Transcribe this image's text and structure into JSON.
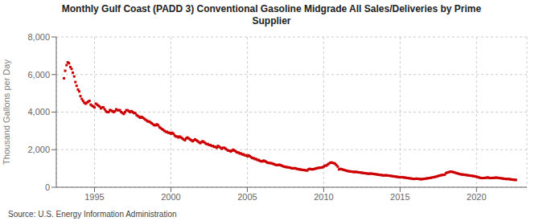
{
  "chart_data": {
    "type": "scatter",
    "title": "Monthly Gulf Coast (PADD 3) Conventional Gasoline Midgrade All Sales/Deliveries by Prime\nSupplier",
    "ylabel": "Thousand Gallons per Day",
    "source": "Source: U.S. Energy Information Administration",
    "color": "#cc0000",
    "marker": "square",
    "grid": true,
    "xlim": [
      1992.5,
      2023.3
    ],
    "xticks": [
      1995,
      2000,
      2005,
      2010,
      2015,
      2020
    ],
    "ylim": [
      0,
      8000
    ],
    "yticks": [
      0,
      {
        "value": 2000,
        "label": "2,000"
      },
      {
        "value": 4000,
        "label": "4,000"
      },
      {
        "value": 6000,
        "label": "6,000"
      },
      {
        "value": 8000,
        "label": "8,000"
      }
    ],
    "x": [
      1993.0,
      1993.08,
      1993.17,
      1993.25,
      1993.33,
      1993.42,
      1993.5,
      1993.58,
      1993.67,
      1993.75,
      1993.83,
      1993.92,
      1994.0,
      1994.08,
      1994.17,
      1994.25,
      1994.33,
      1994.42,
      1994.5,
      1994.58,
      1994.67,
      1994.75,
      1994.83,
      1994.92,
      1995.0,
      1995.08,
      1995.17,
      1995.25,
      1995.33,
      1995.42,
      1995.5,
      1995.58,
      1995.67,
      1995.75,
      1995.83,
      1995.92,
      1996.0,
      1996.08,
      1996.17,
      1996.25,
      1996.33,
      1996.42,
      1996.5,
      1996.58,
      1996.67,
      1996.75,
      1996.83,
      1996.92,
      1997.0,
      1997.08,
      1997.17,
      1997.25,
      1997.33,
      1997.42,
      1997.5,
      1997.58,
      1997.67,
      1997.75,
      1997.83,
      1997.92,
      1998.0,
      1998.08,
      1998.17,
      1998.25,
      1998.33,
      1998.42,
      1998.5,
      1998.58,
      1998.67,
      1998.75,
      1998.83,
      1998.92,
      1999.0,
      1999.08,
      1999.17,
      1999.25,
      1999.33,
      1999.42,
      1999.5,
      1999.58,
      1999.67,
      1999.75,
      1999.83,
      1999.92,
      2000.0,
      2000.08,
      2000.17,
      2000.25,
      2000.33,
      2000.42,
      2000.5,
      2000.58,
      2000.67,
      2000.75,
      2000.83,
      2000.92,
      2001.0,
      2001.08,
      2001.17,
      2001.25,
      2001.33,
      2001.42,
      2001.5,
      2001.58,
      2001.67,
      2001.75,
      2001.83,
      2001.92,
      2002.0,
      2002.08,
      2002.17,
      2002.25,
      2002.33,
      2002.42,
      2002.5,
      2002.58,
      2002.67,
      2002.75,
      2002.83,
      2002.92,
      2003.0,
      2003.08,
      2003.17,
      2003.25,
      2003.33,
      2003.42,
      2003.5,
      2003.58,
      2003.67,
      2003.75,
      2003.83,
      2003.92,
      2004.0,
      2004.08,
      2004.17,
      2004.25,
      2004.33,
      2004.42,
      2004.5,
      2004.58,
      2004.67,
      2004.75,
      2004.83,
      2004.92,
      2005.0,
      2005.08,
      2005.17,
      2005.25,
      2005.33,
      2005.42,
      2005.5,
      2005.58,
      2005.67,
      2005.75,
      2005.83,
      2005.92,
      2006.0,
      2006.08,
      2006.17,
      2006.25,
      2006.33,
      2006.42,
      2006.5,
      2006.58,
      2006.67,
      2006.75,
      2006.83,
      2006.92,
      2007.0,
      2007.08,
      2007.17,
      2007.25,
      2007.33,
      2007.42,
      2007.5,
      2007.58,
      2007.67,
      2007.75,
      2007.83,
      2007.92,
      2008.0,
      2008.08,
      2008.17,
      2008.25,
      2008.33,
      2008.42,
      2008.5,
      2008.58,
      2008.67,
      2008.75,
      2008.83,
      2008.92,
      2009.0,
      2009.08,
      2009.17,
      2009.25,
      2009.33,
      2009.42,
      2009.5,
      2009.58,
      2009.67,
      2009.75,
      2009.83,
      2009.92,
      2010.0,
      2010.08,
      2010.17,
      2010.25,
      2010.33,
      2010.42,
      2010.5,
      2010.58,
      2010.67,
      2010.75,
      2010.83,
      2010.92,
      2011.0,
      2011.08,
      2011.17,
      2011.25,
      2011.33,
      2011.42,
      2011.5,
      2011.58,
      2011.67,
      2011.75,
      2011.83,
      2011.92,
      2012.0,
      2012.08,
      2012.17,
      2012.25,
      2012.33,
      2012.42,
      2012.5,
      2012.58,
      2012.67,
      2012.75,
      2012.83,
      2012.92,
      2013.0,
      2013.08,
      2013.17,
      2013.25,
      2013.33,
      2013.42,
      2013.5,
      2013.58,
      2013.67,
      2013.75,
      2013.83,
      2013.92,
      2014.0,
      2014.08,
      2014.17,
      2014.25,
      2014.33,
      2014.42,
      2014.5,
      2014.58,
      2014.67,
      2014.75,
      2014.83,
      2014.92,
      2015.0,
      2015.08,
      2015.17,
      2015.25,
      2015.33,
      2015.42,
      2015.5,
      2015.58,
      2015.67,
      2015.75,
      2015.83,
      2015.92,
      2016.0,
      2016.08,
      2016.17,
      2016.25,
      2016.33,
      2016.42,
      2016.5,
      2016.58,
      2016.67,
      2016.75,
      2016.83,
      2016.92,
      2017.0,
      2017.08,
      2017.17,
      2017.25,
      2017.33,
      2017.42,
      2017.5,
      2017.58,
      2017.67,
      2017.75,
      2017.83,
      2017.92,
      2018.0,
      2018.08,
      2018.17,
      2018.25,
      2018.33,
      2018.42,
      2018.5,
      2018.58,
      2018.67,
      2018.75,
      2018.83,
      2018.92,
      2019.0,
      2019.08,
      2019.17,
      2019.25,
      2019.33,
      2019.42,
      2019.5,
      2019.58,
      2019.67,
      2019.75,
      2019.83,
      2019.92,
      2020.0,
      2020.08,
      2020.17,
      2020.25,
      2020.33,
      2020.42,
      2020.5,
      2020.58,
      2020.67,
      2020.75,
      2020.83,
      2020.92,
      2021.0,
      2021.08,
      2021.17,
      2021.25,
      2021.33,
      2021.42,
      2021.5,
      2021.58,
      2021.67,
      2021.75,
      2021.83,
      2021.92,
      2022.0,
      2022.08,
      2022.17,
      2022.25,
      2022.33,
      2022.42,
      2022.5,
      2022.58
    ],
    "values": [
      5800,
      6200,
      6500,
      6650,
      6600,
      6400,
      6300,
      6100,
      5900,
      5600,
      5400,
      5200,
      5100,
      4850,
      4700,
      4600,
      4500,
      4450,
      4500,
      4550,
      4600,
      4400,
      4350,
      4300,
      4250,
      4450,
      4400,
      4350,
      4300,
      4200,
      4250,
      4250,
      4150,
      4050,
      4000,
      4000,
      4100,
      4100,
      4050,
      4000,
      4050,
      4150,
      4100,
      4100,
      4100,
      4000,
      3950,
      3900,
      4000,
      4100,
      4100,
      4050,
      4000,
      4050,
      4000,
      3950,
      3950,
      3850,
      3800,
      3750,
      3700,
      3750,
      3700,
      3650,
      3600,
      3550,
      3500,
      3500,
      3450,
      3400,
      3350,
      3300,
      3300,
      3350,
      3300,
      3200,
      3150,
      3100,
      3050,
      3000,
      2950,
      2950,
      2900,
      2900,
      2850,
      2900,
      2850,
      2750,
      2700,
      2700,
      2650,
      2700,
      2650,
      2600,
      2550,
      2500,
      2600,
      2650,
      2600,
      2550,
      2500,
      2450,
      2500,
      2550,
      2500,
      2450,
      2400,
      2350,
      2400,
      2450,
      2400,
      2350,
      2300,
      2300,
      2250,
      2250,
      2200,
      2200,
      2150,
      2150,
      2100,
      2200,
      2150,
      2100,
      2050,
      2100,
      2100,
      2050,
      2000,
      1950,
      1950,
      1900,
      1950,
      2000,
      1950,
      1900,
      1850,
      1850,
      1800,
      1800,
      1750,
      1750,
      1700,
      1700,
      1650,
      1700,
      1650,
      1600,
      1550,
      1550,
      1500,
      1500,
      1450,
      1450,
      1400,
      1380,
      1380,
      1420,
      1380,
      1350,
      1300,
      1300,
      1280,
      1280,
      1250,
      1230,
      1200,
      1180,
      1180,
      1200,
      1180,
      1150,
      1120,
      1100,
      1080,
      1070,
      1060,
      1050,
      1030,
      1010,
      1000,
      1020,
      1000,
      980,
      960,
      950,
      940,
      930,
      920,
      910,
      900,
      890,
      950,
      980,
      960,
      950,
      960,
      980,
      1000,
      1020,
      1030,
      1040,
      1050,
      1060,
      1100,
      1150,
      1150,
      1200,
      1250,
      1300,
      1320,
      1300,
      1280,
      1250,
      1180,
      1100,
      950,
      980,
      960,
      940,
      920,
      900,
      880,
      860,
      850,
      840,
      830,
      820,
      810,
      820,
      810,
      800,
      790,
      780,
      770,
      760,
      750,
      740,
      730,
      720,
      720,
      730,
      720,
      710,
      700,
      690,
      680,
      670,
      660,
      650,
      640,
      630,
      630,
      640,
      630,
      620,
      610,
      600,
      590,
      580,
      570,
      560,
      550,
      540,
      530,
      540,
      530,
      520,
      510,
      500,
      490,
      480,
      470,
      460,
      450,
      440,
      450,
      460,
      450,
      440,
      430,
      430,
      440,
      450,
      460,
      470,
      480,
      490,
      500,
      520,
      530,
      540,
      560,
      580,
      600,
      620,
      640,
      650,
      660,
      670,
      750,
      780,
      800,
      820,
      830,
      820,
      800,
      780,
      760,
      740,
      720,
      700,
      680,
      680,
      670,
      660,
      650,
      640,
      630,
      620,
      610,
      600,
      590,
      580,
      560,
      540,
      520,
      500,
      490,
      490,
      490,
      500,
      510,
      520,
      500,
      490,
      490,
      500,
      500,
      510,
      510,
      500,
      490,
      480,
      470,
      460,
      450,
      440,
      440,
      440,
      430,
      420,
      410,
      400,
      395,
      390
    ]
  }
}
